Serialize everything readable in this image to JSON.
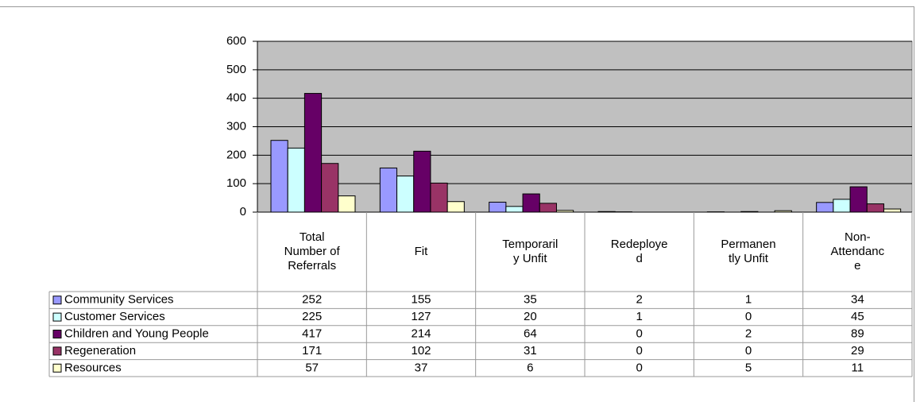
{
  "chart_data": {
    "type": "bar",
    "categories": [
      "Total Number of Referrals",
      "Fit",
      "Temporarily Unfit",
      "Redeployed",
      "Permanently Unfit",
      "Non-Attendance"
    ],
    "series": [
      {
        "name": "Community Services",
        "color": "#9999ff",
        "values": [
          252,
          155,
          35,
          2,
          1,
          34
        ]
      },
      {
        "name": "Customer Services",
        "color": "#ccffff",
        "values": [
          225,
          127,
          20,
          1,
          0,
          45
        ]
      },
      {
        "name": "Children and Young People",
        "color": "#660066",
        "values": [
          417,
          214,
          64,
          0,
          2,
          89
        ]
      },
      {
        "name": "Regeneration",
        "color": "#993366",
        "values": [
          171,
          102,
          31,
          0,
          0,
          29
        ]
      },
      {
        "name": "Resources",
        "color": "#ffffcc",
        "values": [
          57,
          37,
          6,
          0,
          5,
          11
        ]
      }
    ],
    "ylim": [
      0,
      600
    ],
    "yticks": [
      0,
      100,
      200,
      300,
      400,
      500,
      600
    ],
    "grid": true,
    "data_table": true
  }
}
